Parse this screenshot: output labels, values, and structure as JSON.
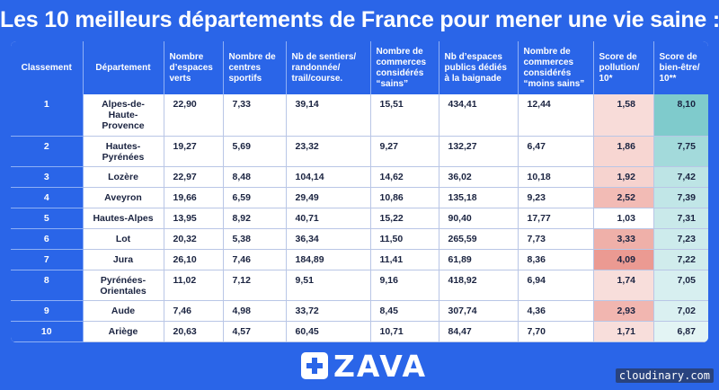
{
  "title": "Les 10 meilleurs départements de France pour mener une vie saine :",
  "table": {
    "headers": [
      "Classement",
      "Département",
      "Nombre d’espaces verts",
      "Nombre de centres sportifs",
      "Nb de sentiers/ randonnée/ trail/course.",
      "Nombre de commerces considérés “sains”",
      "Nb d’espaces publics dédiés à la baignade",
      "Nombre de commerces considérés “moins sains”",
      "Score de pollution/ 10*",
      "Score de bien-être/ 10**"
    ],
    "rows": [
      [
        "1",
        "Alpes-de-Haute-Provence",
        "22,90",
        "7,33",
        "39,14",
        "15,51",
        "434,41",
        "12,44",
        "1,58",
        "8,10"
      ],
      [
        "2",
        "Hautes-Pyrénées",
        "19,27",
        "5,69",
        "23,32",
        "9,27",
        "132,27",
        "6,47",
        "1,86",
        "7,75"
      ],
      [
        "3",
        "Lozère",
        "22,97",
        "8,48",
        "104,14",
        "14,62",
        "36,02",
        "10,18",
        "1,92",
        "7,42"
      ],
      [
        "4",
        "Aveyron",
        "19,66",
        "6,59",
        "29,49",
        "10,86",
        "135,18",
        "9,23",
        "2,52",
        "7,39"
      ],
      [
        "5",
        "Hautes-Alpes",
        "13,95",
        "8,92",
        "40,71",
        "15,22",
        "90,40",
        "17,77",
        "1,03",
        "7,31"
      ],
      [
        "6",
        "Lot",
        "20,32",
        "5,38",
        "36,34",
        "11,50",
        "265,59",
        "7,73",
        "3,33",
        "7,23"
      ],
      [
        "7",
        "Jura",
        "26,10",
        "7,46",
        "184,89",
        "11,41",
        "61,89",
        "8,36",
        "4,09",
        "7,22"
      ],
      [
        "8",
        "Pyrénées-Orientales",
        "11,02",
        "7,12",
        "9,51",
        "9,16",
        "418,92",
        "6,94",
        "1,74",
        "7,05"
      ],
      [
        "9",
        "Aude",
        "7,46",
        "4,98",
        "33,72",
        "8,45",
        "307,74",
        "4,36",
        "2,93",
        "7,02"
      ],
      [
        "10",
        "Ariège",
        "20,63",
        "4,57",
        "60,45",
        "10,71",
        "84,47",
        "7,70",
        "1,71",
        "6,87"
      ]
    ],
    "pollution_colors": [
      "#f8dcd9",
      "#f7d6d2",
      "#f6d3cf",
      "#f2bbb5",
      "#ffffff",
      "#efb0a9",
      "#eb9a92",
      "#f8dedb",
      "#f1b6b0",
      "#f8dedb"
    ],
    "wellbeing_colors": [
      "#7fcbcc",
      "#a3dadb",
      "#bde4e5",
      "#c1e6e7",
      "#c9e9ea",
      "#cdebec",
      "#d0ecec",
      "#d7eff0",
      "#daf0f1",
      "#e3f4f4"
    ]
  },
  "logo": {
    "text": "ZAVA",
    "icon": "plus-cross-icon"
  },
  "credit": "cloudinary.com",
  "colors": {
    "brand_blue": "#2a65e8",
    "text_dark": "#1a2340"
  }
}
